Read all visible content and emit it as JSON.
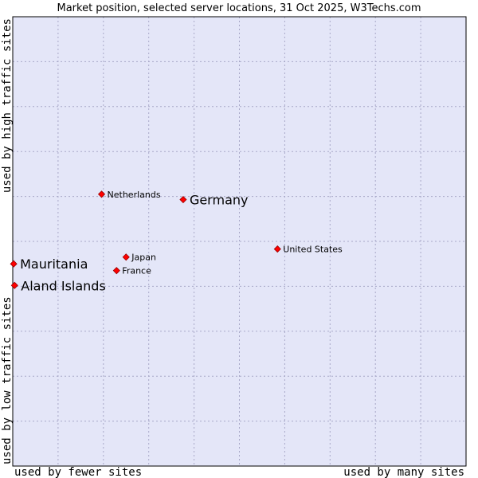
{
  "chart_data": {
    "type": "scatter",
    "title": "Market position, selected server locations, 31 Oct 2025, W3Techs.com",
    "xlabel_left": "used by fewer sites",
    "xlabel_right": "used by many sites",
    "ylabel_bottom": "used by low traffic sites",
    "ylabel_top": "used by high traffic sites",
    "xlim": [
      0,
      100
    ],
    "ylim": [
      0,
      100
    ],
    "grid": true,
    "points": [
      {
        "name": "Netherlands",
        "x": 19.6,
        "y": 60.5,
        "emphasis": false
      },
      {
        "name": "Germany",
        "x": 37.6,
        "y": 59.3,
        "emphasis": true
      },
      {
        "name": "United States",
        "x": 58.4,
        "y": 48.3,
        "emphasis": false
      },
      {
        "name": "Japan",
        "x": 25.0,
        "y": 46.5,
        "emphasis": false
      },
      {
        "name": "Mauritania",
        "x": 0.2,
        "y": 45.0,
        "emphasis": true
      },
      {
        "name": "France",
        "x": 22.9,
        "y": 43.5,
        "emphasis": false
      },
      {
        "name": "Aland Islands",
        "x": 0.4,
        "y": 40.2,
        "emphasis": true
      }
    ]
  },
  "colors": {
    "plot_background": "#e4e6f8",
    "marker": "#ff0000",
    "marker_edge": "#990000",
    "grid": "#a8a8c8",
    "border": "#000000"
  }
}
